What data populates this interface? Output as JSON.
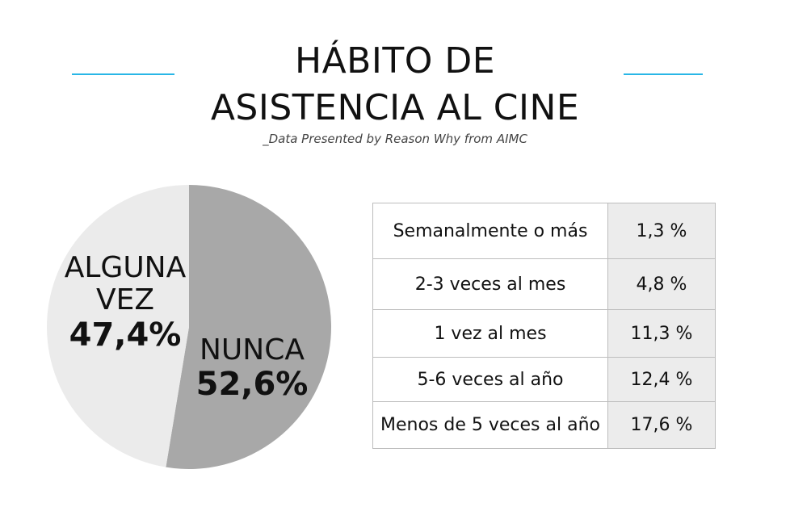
{
  "header": {
    "title_line1": "HÁBITO DE",
    "title_line2": "ASISTENCIA AL CINE",
    "subtitle": "_Data Presented by Reason Why from AIMC",
    "accent_color": "#29b6e6"
  },
  "chart_data": [
    {
      "type": "pie",
      "slices": [
        {
          "name_line1": "NUNCA",
          "name_line2": "",
          "label": "52,6%",
          "value": 52.6,
          "color": "#a8a8a8"
        },
        {
          "name_line1": "ALGUNA",
          "name_line2": "VEZ",
          "label": "47,4%",
          "value": 47.4,
          "color": "#ebebeb"
        }
      ]
    },
    {
      "type": "table",
      "rows": [
        {
          "label": "Semanalmente o más",
          "value": "1,3 %"
        },
        {
          "label": "2-3 veces al mes",
          "value": "4,8 %"
        },
        {
          "label": "1 vez al mes",
          "value": "11,3 %"
        },
        {
          "label": "5-6 veces al año",
          "value": "12,4 %"
        },
        {
          "label": "Menos de 5 veces al año",
          "value": "17,6 %"
        }
      ]
    }
  ]
}
